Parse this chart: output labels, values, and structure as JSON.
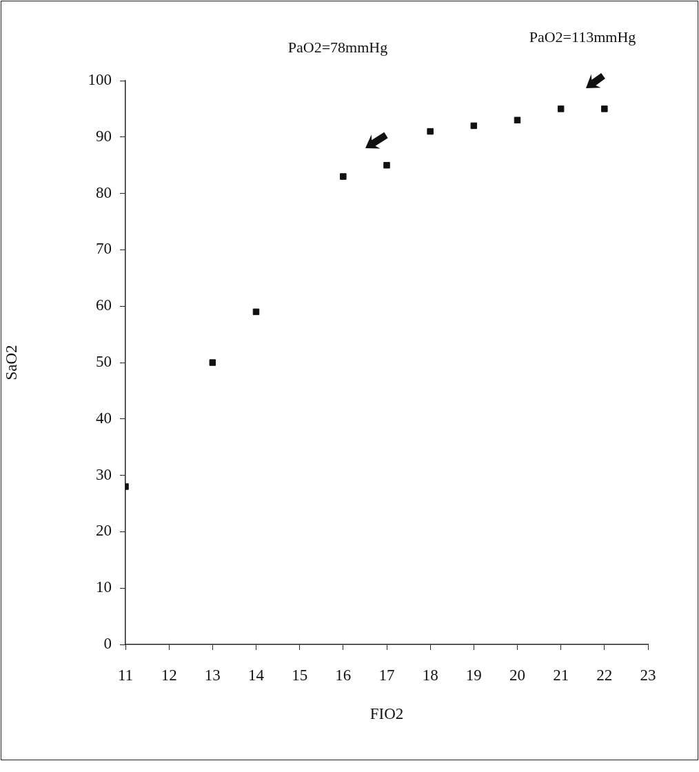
{
  "chart_data": {
    "type": "scatter",
    "xlabel": "FIO2",
    "ylabel": "SaO2",
    "x": [
      11,
      13,
      14,
      16,
      17,
      18,
      19,
      20,
      21,
      22
    ],
    "series": [
      {
        "color": "#111111",
        "values": [
          28,
          50,
          59,
          83,
          85,
          91,
          92,
          93,
          95,
          95
        ]
      }
    ],
    "xlim": [
      11,
      23
    ],
    "xticks": [
      11,
      12,
      13,
      14,
      15,
      16,
      17,
      18,
      19,
      20,
      21,
      22,
      23
    ],
    "ylim": [
      0,
      100
    ],
    "yticks": [
      0,
      10,
      20,
      30,
      40,
      50,
      60,
      70,
      80,
      90,
      100
    ],
    "annotations": [
      "PaO2=78mmHg",
      "PaO2=113mmHg"
    ],
    "grid": false,
    "legend": false,
    "marker": "square"
  }
}
